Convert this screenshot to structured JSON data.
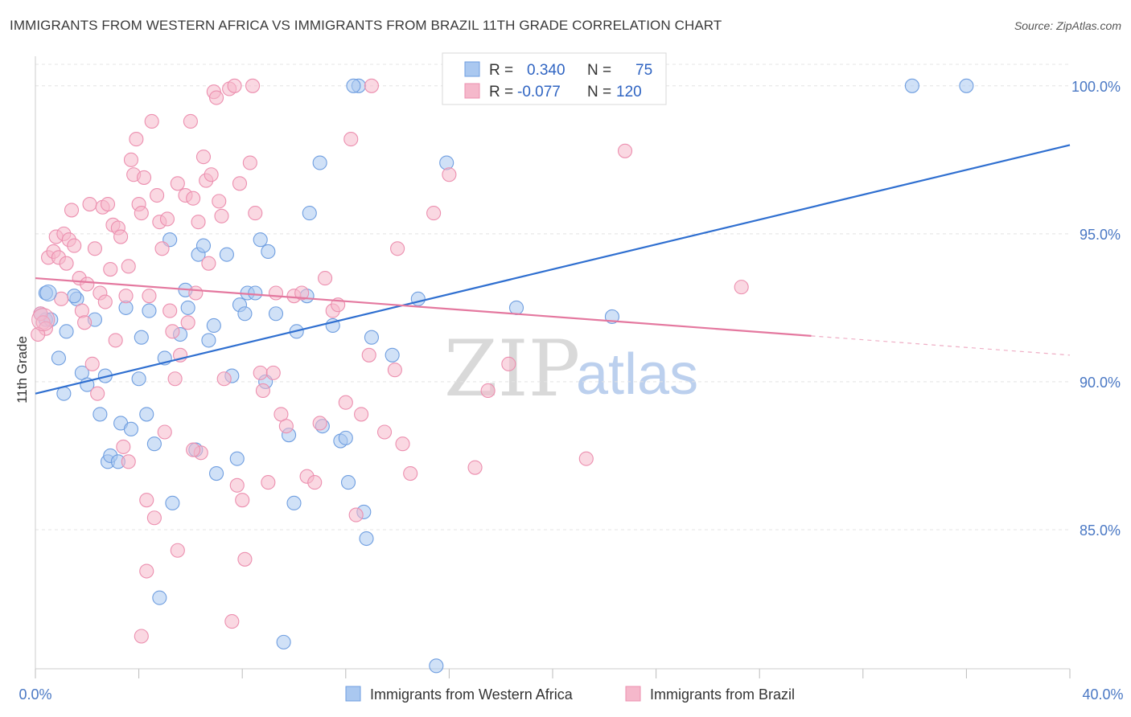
{
  "header": {
    "title": "IMMIGRANTS FROM WESTERN AFRICA VS IMMIGRANTS FROM BRAZIL 11TH GRADE CORRELATION CHART",
    "source": "Source: ZipAtlas.com"
  },
  "watermark": {
    "zip": "ZIP",
    "atlas": "atlas"
  },
  "legend": {
    "r_label": "R =",
    "n_label": "N =",
    "series": [
      {
        "r": "0.340",
        "n": "75",
        "color": "#aac8f0"
      },
      {
        "r": "-0.077",
        "n": "120",
        "color": "#f5b8cb"
      }
    ]
  },
  "bottom_legend": [
    {
      "label": "Immigrants from Western Africa",
      "color": "#aac8f0"
    },
    {
      "label": "Immigrants from Brazil",
      "color": "#f5b8cb"
    }
  ],
  "chart_data": {
    "type": "scatter",
    "title": "IMMIGRANTS FROM WESTERN AFRICA VS IMMIGRANTS FROM BRAZIL 11TH GRADE CORRELATION CHART",
    "xlabel": "",
    "ylabel": "11th Grade",
    "xlim": [
      0,
      40
    ],
    "ylim": [
      80.3,
      101
    ],
    "x_tick_labels": [
      "0.0%",
      "40.0%"
    ],
    "y_ticks": [
      85,
      90,
      95,
      100
    ],
    "y_tick_labels": [
      "85.0%",
      "90.0%",
      "95.0%",
      "100.0%"
    ],
    "grid": true,
    "legend_position": "top-center",
    "series": [
      {
        "name": "Immigrants from Western Africa",
        "color": "#aac8f0",
        "edge": "#6f9ee0",
        "trend_color": "#2f6fd0",
        "trend": {
          "x0": 0,
          "y0": 89.6,
          "x1": 40,
          "y1": 98.0,
          "dash_from": null
        },
        "points": [
          [
            0.4,
            93.0
          ],
          [
            0.4,
            92.1
          ],
          [
            0.6,
            92.1
          ],
          [
            0.9,
            90.8
          ],
          [
            1.2,
            91.7
          ],
          [
            1.1,
            89.6
          ],
          [
            1.6,
            92.8
          ],
          [
            1.8,
            90.3
          ],
          [
            2.0,
            89.9
          ],
          [
            2.3,
            92.1
          ],
          [
            2.5,
            88.9
          ],
          [
            2.7,
            90.2
          ],
          [
            2.8,
            87.3
          ],
          [
            2.9,
            87.5
          ],
          [
            3.2,
            87.3
          ],
          [
            3.3,
            88.6
          ],
          [
            3.5,
            92.5
          ],
          [
            3.7,
            88.4
          ],
          [
            4.0,
            90.1
          ],
          [
            4.1,
            91.5
          ],
          [
            4.3,
            88.9
          ],
          [
            4.4,
            92.4
          ],
          [
            4.6,
            87.9
          ],
          [
            4.8,
            82.7
          ],
          [
            5.0,
            90.8
          ],
          [
            5.2,
            94.8
          ],
          [
            5.3,
            85.9
          ],
          [
            5.6,
            91.6
          ],
          [
            5.8,
            93.1
          ],
          [
            5.9,
            92.5
          ],
          [
            6.2,
            87.7
          ],
          [
            6.3,
            94.3
          ],
          [
            6.5,
            94.6
          ],
          [
            6.7,
            91.4
          ],
          [
            6.9,
            91.9
          ],
          [
            7.0,
            86.9
          ],
          [
            7.4,
            94.3
          ],
          [
            7.6,
            90.2
          ],
          [
            7.8,
            87.4
          ],
          [
            7.9,
            92.6
          ],
          [
            8.1,
            92.3
          ],
          [
            8.2,
            93.0
          ],
          [
            8.5,
            93.0
          ],
          [
            8.7,
            94.8
          ],
          [
            8.9,
            90.0
          ],
          [
            9.0,
            94.4
          ],
          [
            9.3,
            92.3
          ],
          [
            9.6,
            81.2
          ],
          [
            9.8,
            88.2
          ],
          [
            10.0,
            85.9
          ],
          [
            10.1,
            91.7
          ],
          [
            10.5,
            92.9
          ],
          [
            10.6,
            95.7
          ],
          [
            11.0,
            97.4
          ],
          [
            11.1,
            88.5
          ],
          [
            11.5,
            91.9
          ],
          [
            11.8,
            88.0
          ],
          [
            12.0,
            88.1
          ],
          [
            12.1,
            86.6
          ],
          [
            12.5,
            100.0
          ],
          [
            12.7,
            85.6
          ],
          [
            12.8,
            84.7
          ],
          [
            13.0,
            91.5
          ],
          [
            13.8,
            90.9
          ],
          [
            14.8,
            92.8
          ],
          [
            15.5,
            80.4
          ],
          [
            15.9,
            97.4
          ],
          [
            16.4,
            100.0
          ],
          [
            18.6,
            92.5
          ],
          [
            22.3,
            92.2
          ],
          [
            33.9,
            100.0
          ],
          [
            36.0,
            100.0
          ],
          [
            0.2,
            92.3
          ],
          [
            1.5,
            92.9
          ],
          [
            12.3,
            100.0
          ]
        ]
      },
      {
        "name": "Immigrants from Brazil",
        "color": "#f5b8cb",
        "edge": "#ec8faf",
        "trend_color": "#e4789f",
        "trend": {
          "x0": 0,
          "y0": 93.5,
          "x1": 40,
          "y1": 90.9,
          "dash_from": 30
        },
        "points": [
          [
            0.2,
            92.3
          ],
          [
            0.3,
            92.0
          ],
          [
            0.4,
            91.8
          ],
          [
            0.5,
            94.2
          ],
          [
            0.7,
            94.4
          ],
          [
            0.8,
            94.9
          ],
          [
            0.9,
            94.2
          ],
          [
            1.0,
            92.8
          ],
          [
            1.1,
            95.0
          ],
          [
            1.2,
            94.0
          ],
          [
            1.3,
            94.8
          ],
          [
            1.4,
            95.8
          ],
          [
            1.5,
            94.6
          ],
          [
            1.7,
            93.5
          ],
          [
            1.8,
            92.4
          ],
          [
            1.9,
            92.0
          ],
          [
            2.0,
            93.3
          ],
          [
            2.1,
            96.0
          ],
          [
            2.2,
            90.6
          ],
          [
            2.3,
            94.5
          ],
          [
            2.5,
            93.0
          ],
          [
            2.6,
            95.9
          ],
          [
            2.7,
            92.7
          ],
          [
            2.8,
            96.0
          ],
          [
            2.9,
            93.8
          ],
          [
            3.0,
            95.3
          ],
          [
            3.1,
            91.4
          ],
          [
            3.2,
            95.2
          ],
          [
            3.3,
            94.9
          ],
          [
            3.4,
            87.8
          ],
          [
            3.5,
            92.9
          ],
          [
            3.6,
            93.9
          ],
          [
            3.7,
            97.5
          ],
          [
            3.8,
            97.0
          ],
          [
            3.9,
            98.2
          ],
          [
            4.0,
            96.0
          ],
          [
            4.1,
            95.7
          ],
          [
            4.2,
            96.9
          ],
          [
            4.3,
            86.0
          ],
          [
            4.4,
            92.9
          ],
          [
            4.5,
            98.8
          ],
          [
            4.6,
            85.4
          ],
          [
            4.7,
            96.3
          ],
          [
            4.8,
            95.4
          ],
          [
            4.9,
            94.5
          ],
          [
            5.0,
            88.3
          ],
          [
            5.1,
            95.5
          ],
          [
            5.2,
            92.4
          ],
          [
            5.3,
            91.7
          ],
          [
            5.4,
            90.1
          ],
          [
            5.5,
            96.7
          ],
          [
            5.6,
            90.9
          ],
          [
            5.8,
            96.3
          ],
          [
            5.9,
            92.0
          ],
          [
            6.0,
            98.8
          ],
          [
            6.1,
            96.2
          ],
          [
            6.2,
            93.0
          ],
          [
            6.3,
            95.4
          ],
          [
            6.4,
            87.6
          ],
          [
            6.5,
            97.6
          ],
          [
            6.6,
            96.8
          ],
          [
            6.7,
            94.0
          ],
          [
            6.8,
            97.0
          ],
          [
            6.9,
            99.8
          ],
          [
            7.0,
            99.6
          ],
          [
            7.1,
            96.1
          ],
          [
            7.2,
            95.6
          ],
          [
            7.3,
            90.1
          ],
          [
            7.5,
            99.9
          ],
          [
            7.6,
            81.9
          ],
          [
            7.7,
            100.0
          ],
          [
            7.9,
            96.7
          ],
          [
            8.0,
            86.0
          ],
          [
            8.1,
            84.0
          ],
          [
            8.3,
            97.4
          ],
          [
            8.4,
            100.0
          ],
          [
            8.5,
            95.7
          ],
          [
            8.7,
            90.3
          ],
          [
            8.8,
            89.7
          ],
          [
            9.0,
            86.6
          ],
          [
            9.3,
            93.0
          ],
          [
            9.5,
            88.9
          ],
          [
            9.7,
            88.5
          ],
          [
            10.0,
            92.9
          ],
          [
            10.3,
            93.0
          ],
          [
            10.5,
            86.8
          ],
          [
            10.8,
            86.6
          ],
          [
            11.2,
            93.5
          ],
          [
            11.5,
            92.4
          ],
          [
            11.7,
            92.6
          ],
          [
            12.0,
            89.3
          ],
          [
            12.2,
            98.2
          ],
          [
            12.4,
            85.5
          ],
          [
            12.6,
            88.9
          ],
          [
            13.0,
            100.0
          ],
          [
            13.5,
            88.3
          ],
          [
            13.9,
            90.4
          ],
          [
            14.0,
            94.5
          ],
          [
            14.5,
            86.9
          ],
          [
            15.4,
            95.7
          ],
          [
            16.0,
            97.0
          ],
          [
            16.4,
            100.0
          ],
          [
            17.0,
            87.1
          ],
          [
            18.3,
            90.6
          ],
          [
            21.3,
            87.4
          ],
          [
            22.8,
            97.8
          ],
          [
            27.3,
            93.2
          ],
          [
            5.5,
            84.3
          ],
          [
            4.3,
            83.6
          ],
          [
            4.1,
            81.4
          ],
          [
            0.1,
            91.6
          ],
          [
            2.4,
            89.6
          ],
          [
            3.6,
            87.3
          ],
          [
            6.1,
            87.7
          ],
          [
            7.8,
            86.5
          ],
          [
            9.2,
            90.3
          ],
          [
            11.0,
            88.6
          ],
          [
            12.9,
            90.9
          ],
          [
            14.2,
            87.9
          ],
          [
            17.5,
            89.7
          ]
        ]
      }
    ]
  }
}
